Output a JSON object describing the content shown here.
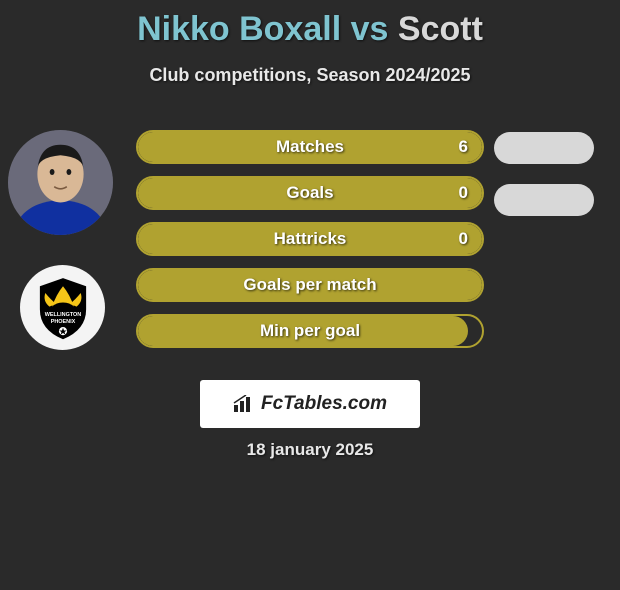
{
  "title": {
    "player1": "Nikko Boxall",
    "vs": "vs",
    "player2": "Scott",
    "player1_color": "#7fc4d0",
    "player2_color": "#d8d8d8"
  },
  "subtitle": "Club competitions, Season 2024/2025",
  "background_color": "#2a2a2a",
  "player1_avatar": {
    "skin": "#d9b896",
    "hair": "#1a1a1a",
    "shirt": "#1030a0"
  },
  "club_badge": {
    "bg": "#f4f4f4",
    "emblem_bg": "#000000",
    "accent": "#f5c518",
    "text": "WELLINGTON",
    "text2": "PHOENIX"
  },
  "bars": {
    "border_color": "#b0a230",
    "fill_color": "#b0a230",
    "label_color": "#ffffff",
    "items": [
      {
        "label": "Matches",
        "value": "6",
        "fill_pct": 100,
        "show_value": true
      },
      {
        "label": "Goals",
        "value": "0",
        "fill_pct": 100,
        "show_value": true
      },
      {
        "label": "Hattricks",
        "value": "0",
        "fill_pct": 100,
        "show_value": true
      },
      {
        "label": "Goals per match",
        "value": "",
        "fill_pct": 100,
        "show_value": false
      },
      {
        "label": "Min per goal",
        "value": "",
        "fill_pct": 96,
        "show_value": false
      }
    ]
  },
  "right_ovals": {
    "color": "#d8d8d8",
    "count": 2
  },
  "footer": {
    "brand": "FcTables.com",
    "brand_bg": "#ffffff",
    "brand_text_color": "#222222",
    "date": "18 january 2025"
  }
}
